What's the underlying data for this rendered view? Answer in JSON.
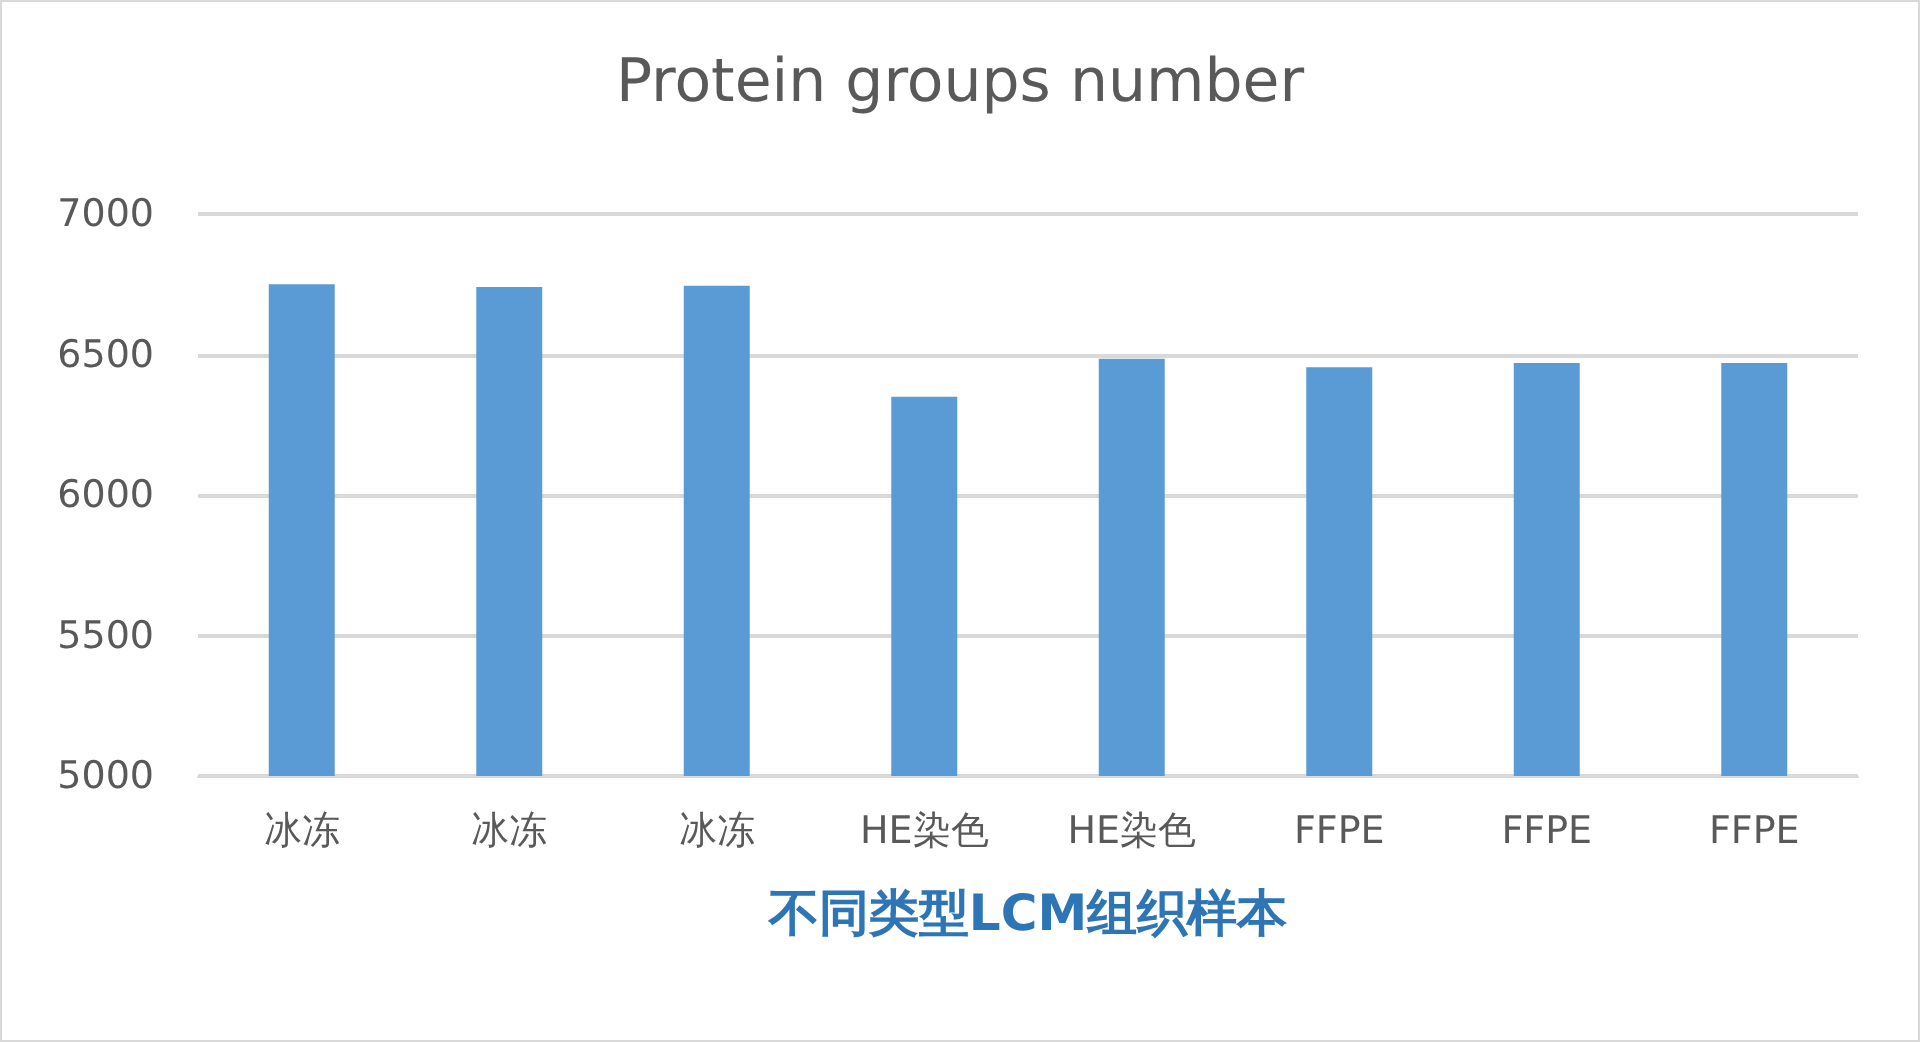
{
  "chart_data": {
    "type": "bar",
    "title": "Protein groups number",
    "xlabel": "不同类型LCM组织样本",
    "categories": [
      "冰冻",
      "冰冻",
      "冰冻",
      "HE染色",
      "HE染色",
      "FFPE",
      "FFPE",
      "FFPE"
    ],
    "values": [
      6750,
      6740,
      6745,
      6350,
      6485,
      6455,
      6470,
      6470
    ],
    "color": "#5b9bd5",
    "ylim": [
      5000,
      7000
    ],
    "yticks": [
      5000,
      5500,
      6000,
      6500,
      7000
    ],
    "grid": "y"
  }
}
